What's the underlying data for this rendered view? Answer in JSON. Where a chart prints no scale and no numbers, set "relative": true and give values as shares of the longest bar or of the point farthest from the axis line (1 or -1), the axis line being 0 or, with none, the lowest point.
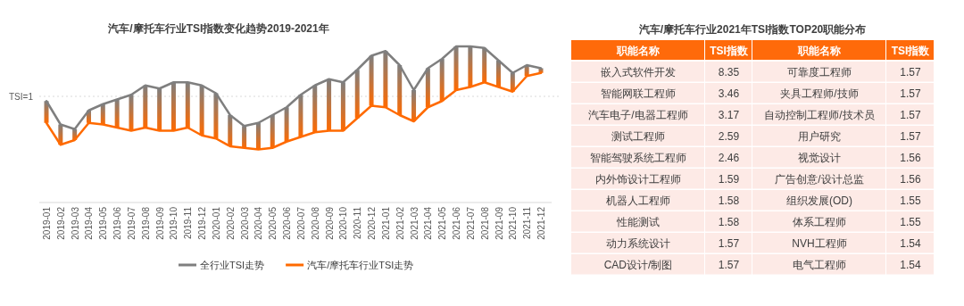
{
  "chart_data": [
    {
      "type": "line",
      "title": "汽车/摩托车行业TSI指数变化趋势2019-2021年",
      "relative": true,
      "legend": "bottom",
      "line_style": "solid",
      "marker": "none",
      "categories": [
        "2019-01",
        "2019-02",
        "2019-03",
        "2019-04",
        "2019-05",
        "2019-06",
        "2019-07",
        "2019-08",
        "2019-09",
        "2019-10",
        "2019-11",
        "2019-12",
        "2020-01",
        "2020-02",
        "2020-03",
        "2020-04",
        "2020-05",
        "2020-06",
        "2020-07",
        "2020-08",
        "2020-09",
        "2020-10",
        "2020-11",
        "2020-12",
        "2021-01",
        "2021-02",
        "2021-03",
        "2021-04",
        "2021-05",
        "2021-06",
        "2021-07",
        "2021-08",
        "2021-09",
        "2021-10",
        "2021-11",
        "2021-12"
      ],
      "series": [
        {
          "name": "全行业TSI走势",
          "color": "#7f7f7f",
          "values": [
            0.65,
            0.5,
            0.47,
            0.59,
            0.63,
            0.66,
            0.69,
            0.75,
            0.73,
            0.77,
            0.77,
            0.75,
            0.7,
            0.56,
            0.49,
            0.51,
            0.56,
            0.61,
            0.69,
            0.75,
            0.79,
            0.77,
            0.85,
            0.94,
            0.97,
            0.88,
            0.72,
            0.86,
            0.92,
            1.0,
            1.0,
            0.99,
            0.91,
            0.83,
            0.88,
            0.86
          ]
        },
        {
          "name": "汽车/摩托车行业TSI走势",
          "color": "#ff6a00",
          "values": [
            0.51,
            0.37,
            0.4,
            0.51,
            0.5,
            0.48,
            0.46,
            0.48,
            0.46,
            0.46,
            0.48,
            0.43,
            0.41,
            0.36,
            0.35,
            0.34,
            0.35,
            0.39,
            0.42,
            0.45,
            0.46,
            0.46,
            0.54,
            0.62,
            0.61,
            0.56,
            0.52,
            0.61,
            0.65,
            0.72,
            0.74,
            0.77,
            0.74,
            0.71,
            0.81,
            0.83
          ]
        }
      ],
      "ref_lines": [
        {
          "axis": "y",
          "value": 0.68,
          "label": "TSI=1",
          "color": "#d9d9d9",
          "line_style": "dotted"
        }
      ]
    },
    {
      "type": "other",
      "title": "汽车/摩托车行业2021年TSI指数TOP20职能分布",
      "categories": [
        "职能名称",
        "TSI指数",
        "职能名称",
        "TSI指数"
      ],
      "cell_labels": [
        [
          "嵌入式软件开发",
          "8.35",
          "可靠度工程师",
          "1.57"
        ],
        [
          "智能网联工程师",
          "3.46",
          "夹具工程师/技师",
          "1.57"
        ],
        [
          "汽车电子/电器工程师",
          "3.17",
          "自动控制工程师/技术员",
          "1.57"
        ],
        [
          "测试工程师",
          "2.59",
          "用户研究",
          "1.57"
        ],
        [
          "智能驾驶系统工程师",
          "2.46",
          "视觉设计",
          "1.56"
        ],
        [
          "内外饰设计工程师",
          "1.59",
          "广告创意/设计总监",
          "1.56"
        ],
        [
          "机器人工程师",
          "1.58",
          "组织发展(OD)",
          "1.55"
        ],
        [
          "性能测试",
          "1.58",
          "体系工程师",
          "1.55"
        ],
        [
          "动力系统设计",
          "1.57",
          "NVH工程师",
          "1.54"
        ],
        [
          "CAD设计/制图",
          "1.57",
          "电气工程师",
          "1.54"
        ]
      ]
    }
  ]
}
